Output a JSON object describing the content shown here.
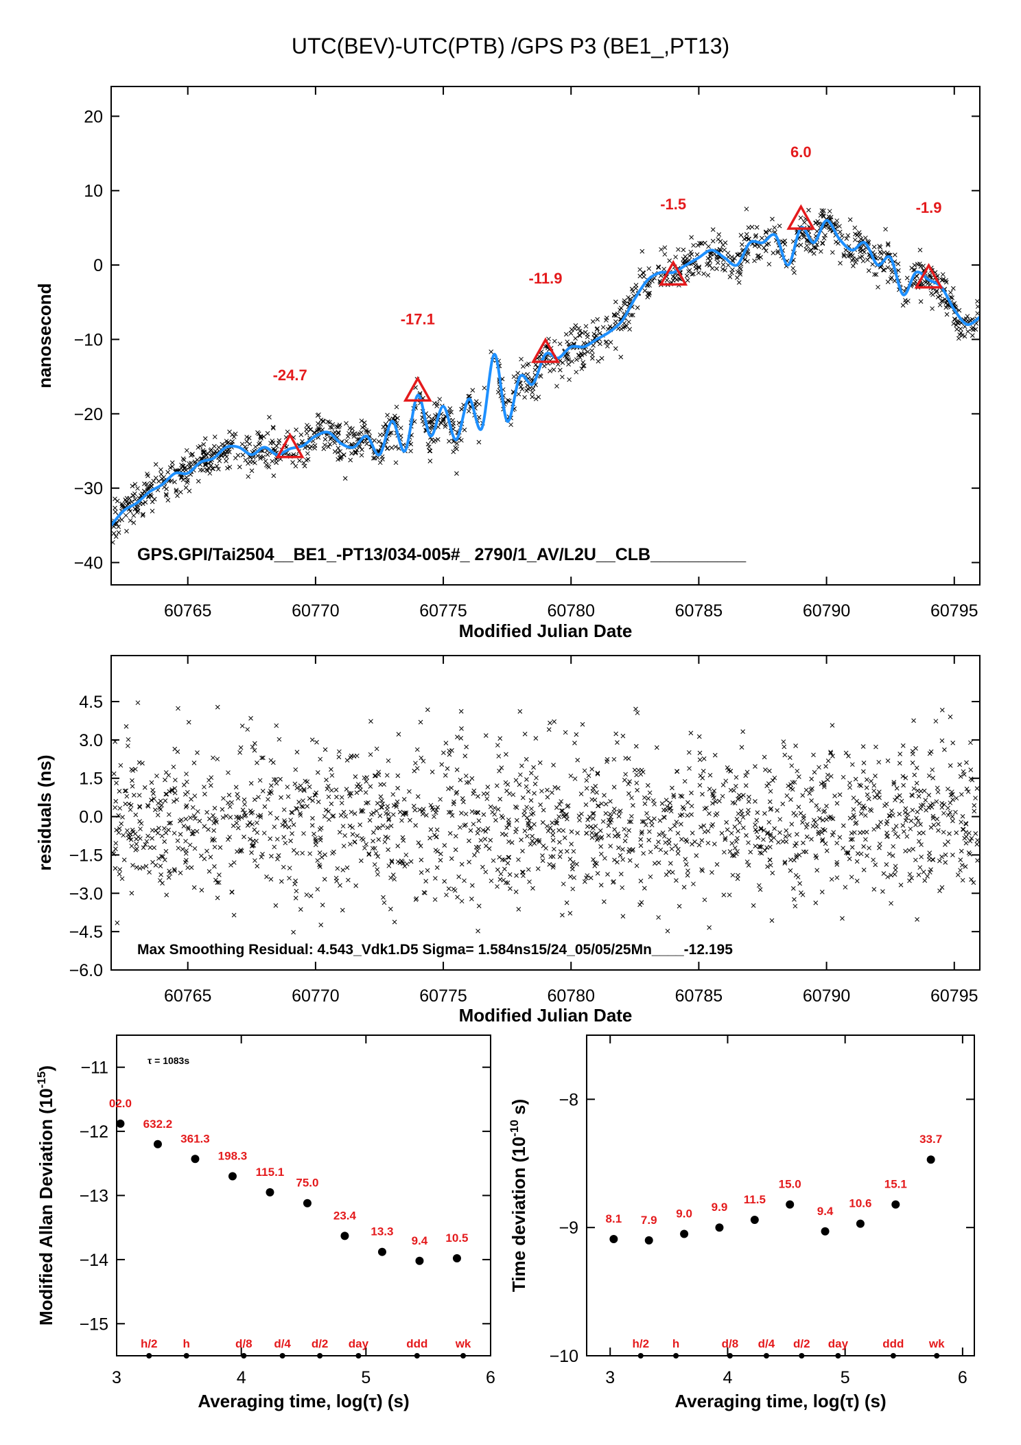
{
  "title": "UTC(BEV)-UTC(PTB)  /GPS  P3  (BE1_,PT13)",
  "chart_data": [
    {
      "type": "scatter",
      "name": "time-series",
      "xlabel": "Modified Julian Date",
      "ylabel": "nanosecond",
      "xlim": [
        60762,
        60796
      ],
      "ylim": [
        -43,
        24
      ],
      "xticks": [
        60765,
        60770,
        60775,
        60780,
        60785,
        60790,
        60795
      ],
      "yticks": [
        20,
        10,
        0,
        -10,
        -20,
        -30,
        -40
      ],
      "ytick_labels": [
        "20",
        "10",
        "0",
        "−10",
        "−20",
        "−30",
        "−40"
      ],
      "annotation": "GPS.GPI/Tai2504__BE1_-PT13/034-005#_  2790/1_AV/L2U__CLB__________",
      "smooth_curve": {
        "x": [
          60762.0,
          60762.5,
          60763.0,
          60763.5,
          60764.0,
          60764.5,
          60765.0,
          60765.5,
          60766.0,
          60766.5,
          60767.0,
          60767.5,
          60768.0,
          60768.5,
          60769.0,
          60769.5,
          60770.0,
          60770.5,
          60771.0,
          60771.5,
          60772.0,
          60772.5,
          60773.0,
          60773.5,
          60774.0,
          60774.5,
          60775.0,
          60775.5,
          60776.0,
          60776.5,
          60777.0,
          60777.5,
          60778.0,
          60778.5,
          60779.0,
          60779.5,
          60780.0,
          60780.5,
          60781.0,
          60781.5,
          60782.0,
          60782.5,
          60783.0,
          60783.5,
          60784.0,
          60784.5,
          60785.0,
          60785.5,
          60786.0,
          60786.5,
          60787.0,
          60787.5,
          60788.0,
          60788.5,
          60789.0,
          60789.5,
          60790.0,
          60790.5,
          60791.0,
          60791.5,
          60792.0,
          60792.5,
          60793.0,
          60793.5,
          60794.0,
          60794.5,
          60795.0,
          60795.5,
          60796.0
        ],
        "y": [
          -35,
          -33,
          -32,
          -30.5,
          -29.5,
          -28,
          -28,
          -26.5,
          -26,
          -24.5,
          -24.5,
          -25.5,
          -24.5,
          -25.5,
          -24.7,
          -24.3,
          -23,
          -22.5,
          -24,
          -24.5,
          -23,
          -25.5,
          -21,
          -25,
          -17.5,
          -23,
          -19,
          -23.5,
          -18,
          -22,
          -12,
          -21,
          -15,
          -16,
          -12,
          -12.5,
          -11,
          -11,
          -10,
          -9,
          -7.5,
          -4.5,
          -2,
          -1,
          -1,
          0,
          1,
          2,
          1,
          0,
          3,
          3,
          4,
          0,
          5,
          3,
          6,
          3.5,
          2,
          3,
          0,
          1,
          -4,
          -1,
          -2,
          -3,
          -6,
          -8,
          -7
        ]
      },
      "markers": [
        {
          "x": 60769,
          "y": -24.7,
          "label": "-24.7"
        },
        {
          "x": 60774,
          "y": -17.1,
          "label": "-17.1"
        },
        {
          "x": 60779,
          "y": -11.9,
          "label": "-11.9"
        },
        {
          "x": 60784,
          "y": -1.5,
          "label": "-1.5"
        },
        {
          "x": 60789,
          "y": 6.0,
          "label": "6.0"
        },
        {
          "x": 60794,
          "y": -1.9,
          "label": "-1.9"
        }
      ],
      "marker_label_y": [
        -15.5,
        -8,
        -2.5,
        7.5,
        14.5,
        7
      ]
    },
    {
      "type": "scatter",
      "name": "residuals",
      "xlabel": "Modified Julian Date",
      "ylabel": "residuals (ns)",
      "xlim": [
        60762,
        60796
      ],
      "ylim": [
        -6.0,
        6.3
      ],
      "xticks": [
        60765,
        60770,
        60775,
        60780,
        60785,
        60790,
        60795
      ],
      "yticks": [
        4.5,
        3.0,
        1.5,
        0.0,
        -1.5,
        -3.0,
        -4.5,
        -6.0
      ],
      "ytick_labels": [
        "4.5",
        "3.0",
        "1.5",
        "0.0",
        "−1.5",
        "−3.0",
        "−4.5",
        "−6.0"
      ],
      "annotation": "Max Smoothing Residual: 4.543_Vdk1.D5  Sigma= 1.584ns15/24_05/05/25Mn____-12.195"
    },
    {
      "type": "scatter",
      "name": "modified-allan-deviation",
      "xlabel": "Averaging time, log(τ) (s)",
      "ylabel": "Modified Allan Deviation (10",
      "ylabel_sup": "-15",
      "ylabel_end": ")",
      "tau_note": "τ = 1083s",
      "xlim": [
        3,
        6
      ],
      "ylim": [
        -15.5,
        -10.5
      ],
      "xticks": [
        3,
        4,
        5,
        6
      ],
      "yticks": [
        -11,
        -12,
        -13,
        -14,
        -15
      ],
      "ytick_labels": [
        "−11",
        "−12",
        "−13",
        "−14",
        "−15"
      ],
      "points": [
        {
          "x": 3.03,
          "y": -11.88,
          "label": "02.0"
        },
        {
          "x": 3.33,
          "y": -12.2,
          "label": "632.2"
        },
        {
          "x": 3.63,
          "y": -12.43,
          "label": "361.3"
        },
        {
          "x": 3.93,
          "y": -12.7,
          "label": "198.3"
        },
        {
          "x": 4.23,
          "y": -12.95,
          "label": "115.1"
        },
        {
          "x": 4.53,
          "y": -13.12,
          "label": "75.0"
        },
        {
          "x": 4.83,
          "y": -13.63,
          "label": "23.4"
        },
        {
          "x": 5.13,
          "y": -13.88,
          "label": "13.3"
        },
        {
          "x": 5.43,
          "y": -14.02,
          "label": "9.4"
        },
        {
          "x": 5.73,
          "y": -13.98,
          "label": "10.5"
        }
      ],
      "bottom_marks": [
        {
          "x": 3.26,
          "label": "h/2"
        },
        {
          "x": 3.56,
          "label": "h"
        },
        {
          "x": 4.02,
          "label": "d/8"
        },
        {
          "x": 4.33,
          "label": "d/4"
        },
        {
          "x": 4.63,
          "label": "d/2"
        },
        {
          "x": 4.94,
          "label": "day"
        },
        {
          "x": 5.41,
          "label": "ddd"
        },
        {
          "x": 5.78,
          "label": "wk"
        }
      ]
    },
    {
      "type": "scatter",
      "name": "time-deviation",
      "xlabel": "Averaging time, log(τ) (s)",
      "ylabel": "Time deviation (10",
      "ylabel_sup": "-10",
      "ylabel_end": " s)",
      "xlim": [
        2.8,
        6.1
      ],
      "ylim": [
        -10,
        -7.5
      ],
      "xticks": [
        3,
        4,
        5,
        6
      ],
      "yticks": [
        -8,
        -9,
        -10
      ],
      "ytick_labels": [
        "−8",
        "−9",
        "−10"
      ],
      "points": [
        {
          "x": 3.03,
          "y": -9.09,
          "label": "8.1"
        },
        {
          "x": 3.33,
          "y": -9.1,
          "label": "7.9"
        },
        {
          "x": 3.63,
          "y": -9.05,
          "label": "9.0"
        },
        {
          "x": 3.93,
          "y": -9.0,
          "label": "9.9"
        },
        {
          "x": 4.23,
          "y": -8.94,
          "label": "11.5"
        },
        {
          "x": 4.53,
          "y": -8.82,
          "label": "15.0"
        },
        {
          "x": 4.83,
          "y": -9.03,
          "label": "9.4"
        },
        {
          "x": 5.13,
          "y": -8.97,
          "label": "10.6"
        },
        {
          "x": 5.43,
          "y": -8.82,
          "label": "15.1"
        },
        {
          "x": 5.73,
          "y": -8.47,
          "label": "33.7"
        }
      ],
      "bottom_marks": [
        {
          "x": 3.26,
          "label": "h/2"
        },
        {
          "x": 3.56,
          "label": "h"
        },
        {
          "x": 4.02,
          "label": "d/8"
        },
        {
          "x": 4.33,
          "label": "d/4"
        },
        {
          "x": 4.63,
          "label": "d/2"
        },
        {
          "x": 4.94,
          "label": "day"
        },
        {
          "x": 5.41,
          "label": "ddd"
        },
        {
          "x": 5.78,
          "label": "wk"
        }
      ]
    }
  ],
  "colors": {
    "curve": "#1e90ff",
    "marker": "#e41a1c",
    "points": "#000000",
    "axis": "#000000"
  }
}
